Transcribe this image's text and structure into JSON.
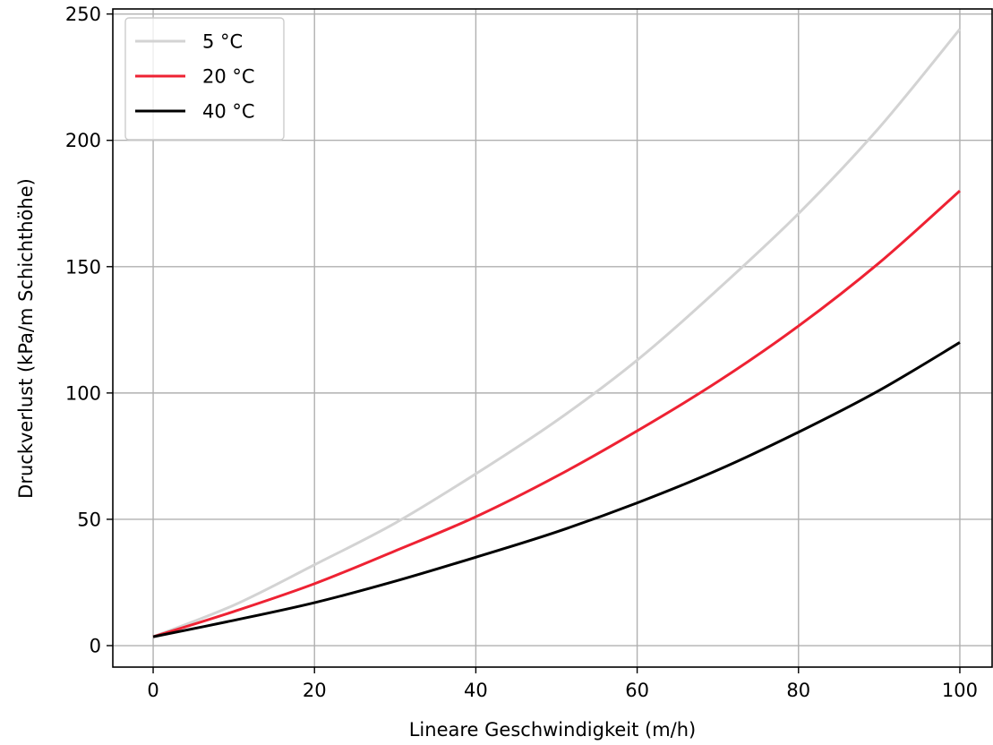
{
  "chart_data": {
    "type": "line",
    "title": "",
    "xlabel": "Lineare Geschwindigkeit (m/h)",
    "ylabel": "Druckverlust (kPa/m Schichthöhe)",
    "xlim": [
      -5,
      104
    ],
    "ylim": [
      -8.5,
      252
    ],
    "xticks": [
      0,
      20,
      40,
      60,
      80,
      100
    ],
    "yticks": [
      0,
      50,
      100,
      150,
      200,
      250
    ],
    "grid": true,
    "legend_position": "top-left",
    "x": [
      0,
      10,
      20,
      30,
      40,
      50,
      60,
      70,
      80,
      90,
      100
    ],
    "series": [
      {
        "name": "5 °C",
        "color": "#d3d3d3",
        "values": [
          3.5,
          16,
          32,
          48.5,
          68,
          89,
          113,
          141,
          171,
          205,
          244
        ]
      },
      {
        "name": "20 °C",
        "color": "#ee2233",
        "values": [
          3.5,
          13.5,
          24.5,
          37.5,
          51,
          67,
          85,
          104.5,
          126.5,
          151.5,
          180
        ]
      },
      {
        "name": "40 °C",
        "color": "#000000",
        "values": [
          3.5,
          10,
          17,
          25.5,
          35,
          45,
          56.5,
          69.5,
          84.5,
          101,
          120
        ]
      }
    ]
  }
}
